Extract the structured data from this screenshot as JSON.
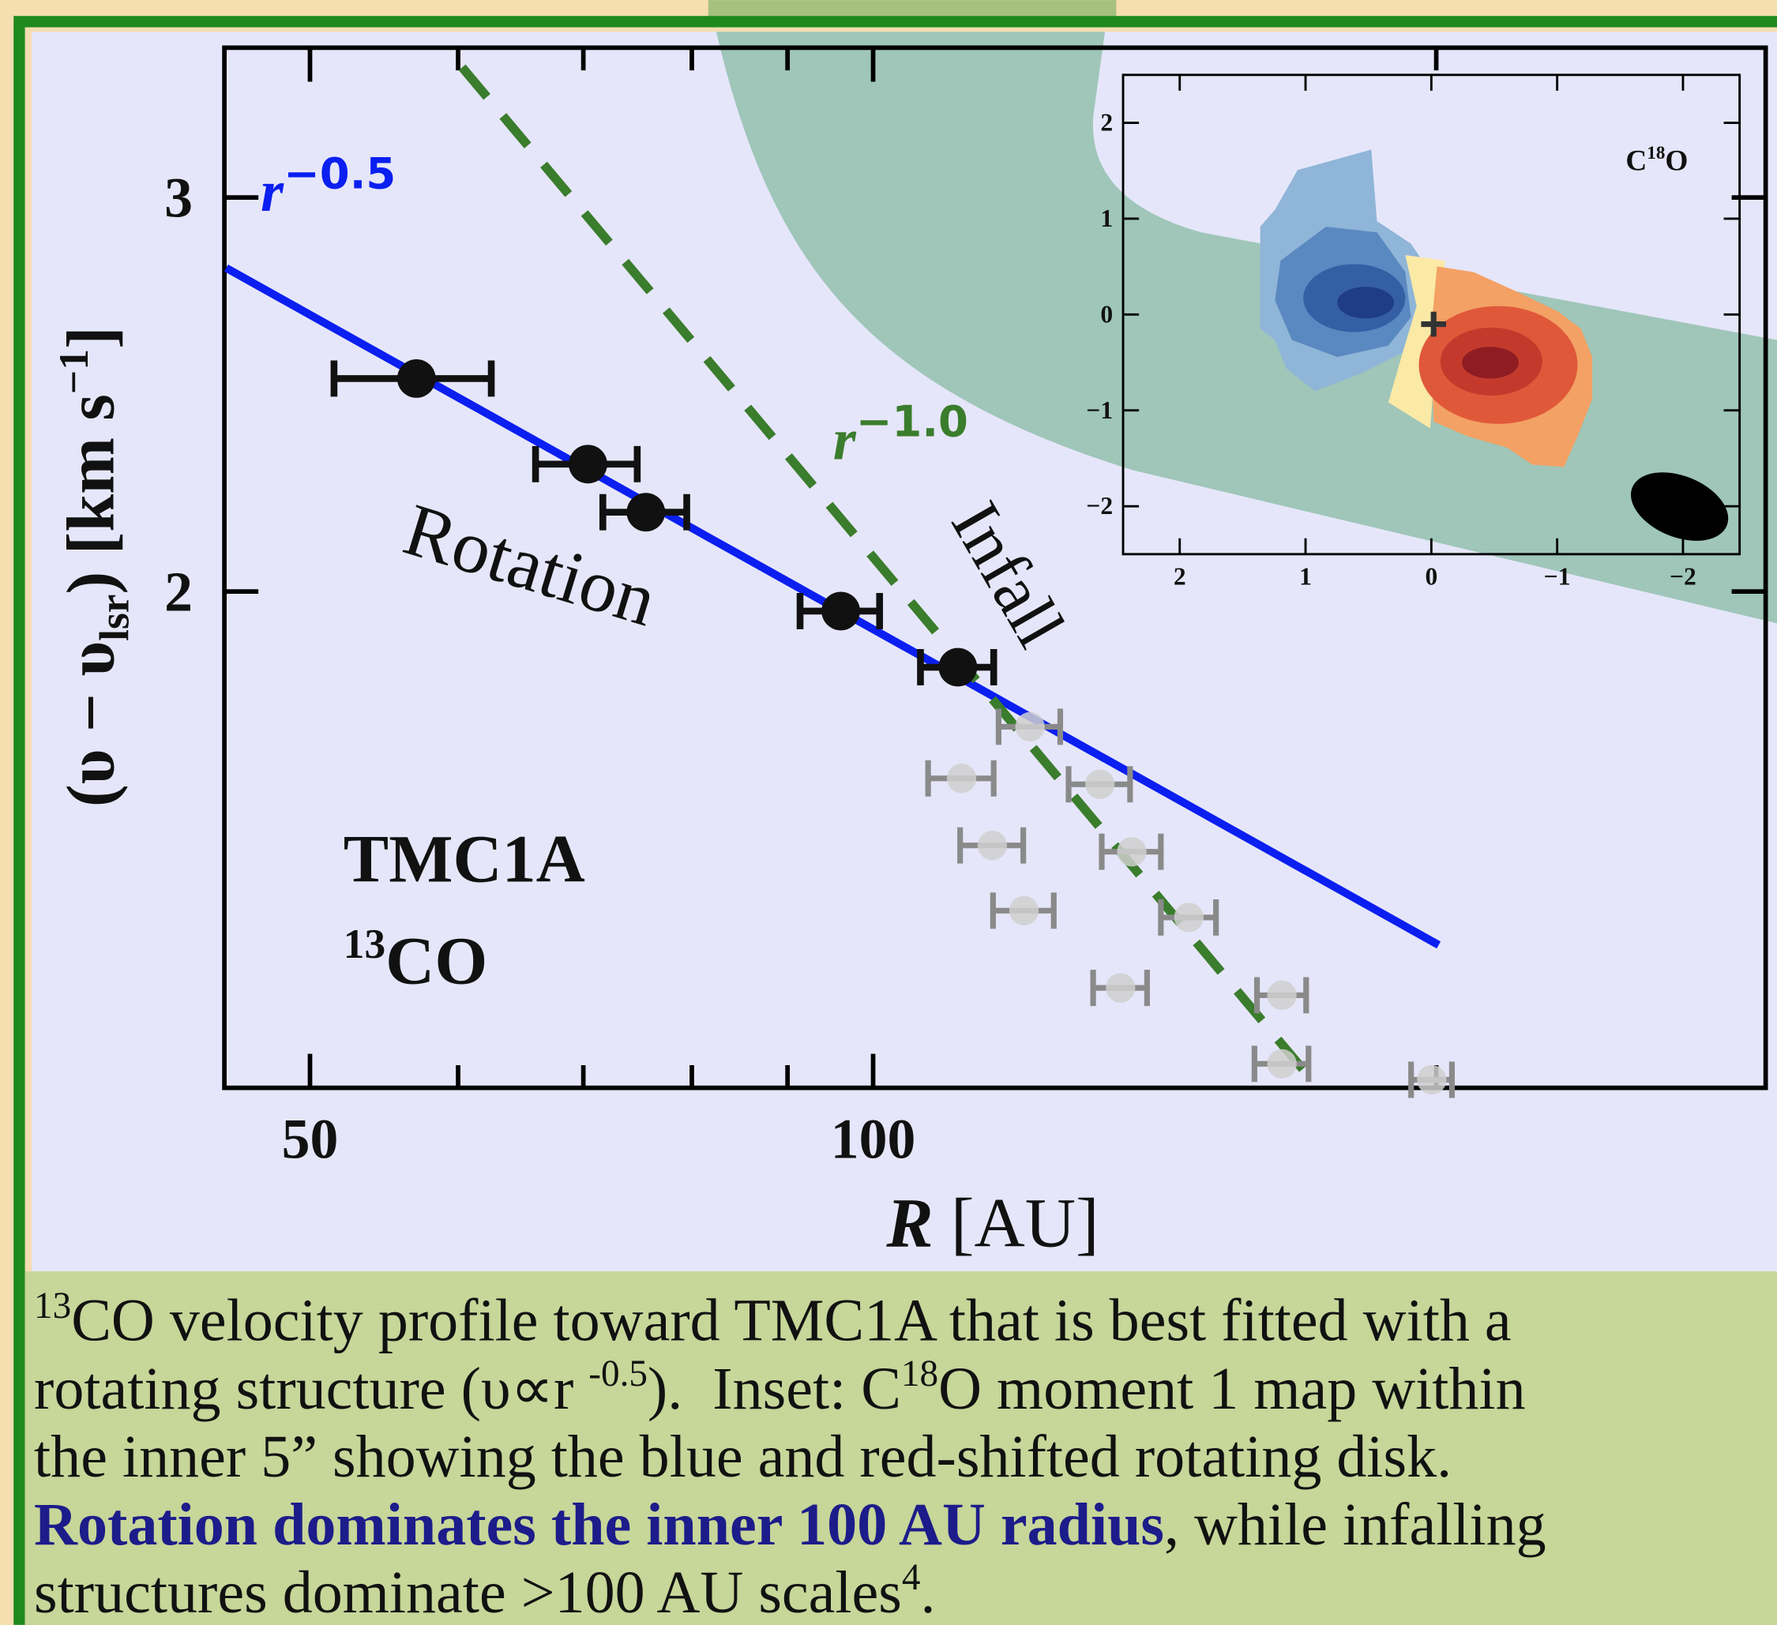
{
  "chart_data": [
    {
      "type": "scatter",
      "x_label": [
        {
          "text": "R",
          "italic": true,
          "bold": true
        },
        {
          "text": " [AU]"
        }
      ],
      "y_label": [
        {
          "text": "(υ − υ"
        },
        {
          "text": "lsr",
          "sub": true
        },
        {
          "text": ") [km s"
        },
        {
          "text": "−1",
          "sup": true
        },
        {
          "text": "]"
        }
      ],
      "xlim": [
        45,
        300
      ],
      "ylim": [
        1.2,
        3.5
      ],
      "log_x": true,
      "log_y": true,
      "xticks": [
        50,
        100
      ],
      "xminor_ticks": [
        60,
        70,
        80,
        90,
        200
      ],
      "yticks": [
        2,
        3
      ],
      "series": [
        {
          "color": "#111111",
          "x": [
            57.0,
            70.4,
            75.6,
            96.1,
            111.0
          ],
          "y": [
            2.49,
            2.28,
            2.17,
            1.96,
            1.85
          ],
          "xerr": [
            5.5,
            4.4,
            3.9,
            4.7,
            5.0
          ]
        },
        {
          "color": "#8a8a8a",
          "x": [
            121.3,
            111.5,
            132.2,
            115.8,
            137.5,
            120.4,
            147.5,
            135.6,
            165.4,
            165.4,
            198.9
          ],
          "y": [
            1.74,
            1.65,
            1.64,
            1.54,
            1.53,
            1.44,
            1.43,
            1.33,
            1.32,
            1.23,
            1.21
          ],
          "xerr": [
            4.6,
            4.5,
            5.0,
            4.5,
            5.0,
            4.5,
            5.0,
            4.5,
            5.0,
            5.5,
            5.0
          ]
        }
      ],
      "fits": [
        {
          "name": "Rotation",
          "color": "#0a1ff0",
          "dashed": false,
          "x": [
            45.1,
            200.6
          ],
          "y": [
            2.79,
            1.39
          ],
          "law": "r",
          "exponent": "−0.5"
        },
        {
          "name": "Infall",
          "color": "#3a7d2c",
          "dashed": true,
          "x": [
            60.3,
            173
          ],
          "y": [
            3.43,
            1.2
          ],
          "law": "r",
          "exponent": "−1.0"
        }
      ],
      "source": "TMC1A",
      "tracer": [
        {
          "text": "13",
          "sup": true
        },
        {
          "text": "CO"
        }
      ]
    },
    {
      "type": "map",
      "label": [
        {
          "text": "C"
        },
        {
          "text": "18",
          "sup": true
        },
        {
          "text": "O"
        }
      ],
      "xlim": [
        2.45,
        -2.45
      ],
      "ylim": [
        -2.5,
        2.5
      ],
      "xticks": [
        2,
        1,
        0,
        {
          "value": -1,
          "label": "−1"
        },
        {
          "value": -2,
          "label": "−2"
        }
      ],
      "yticks": [
        2,
        1,
        0,
        {
          "value": -1,
          "label": "−1"
        },
        {
          "value": -2,
          "label": "−2"
        }
      ]
    }
  ],
  "caption": [
    [
      {
        "text": "13",
        "sup": true
      },
      {
        "text": "CO velocity profile toward TMC1A that is best fitted with a"
      }
    ],
    [
      {
        "text": "rotating structure (υ∝r "
      },
      {
        "text": "-0.5",
        "sup": true
      },
      {
        "text": ").  Inset: C"
      },
      {
        "text": "18",
        "sup": true
      },
      {
        "text": "O moment 1 map within"
      }
    ],
    [
      {
        "text": "the inner 5” showing the blue and red-shifted rotating disk."
      }
    ],
    [
      {
        "text": "Rotation dominates the inner 100 AU radius",
        "bold": true,
        "color": "#1c1c8a"
      },
      {
        "text": ", while infalling"
      }
    ],
    [
      {
        "text": "structures dominate >100 AU scales"
      },
      {
        "text": "4",
        "sup": true
      },
      {
        "text": "."
      }
    ]
  ]
}
